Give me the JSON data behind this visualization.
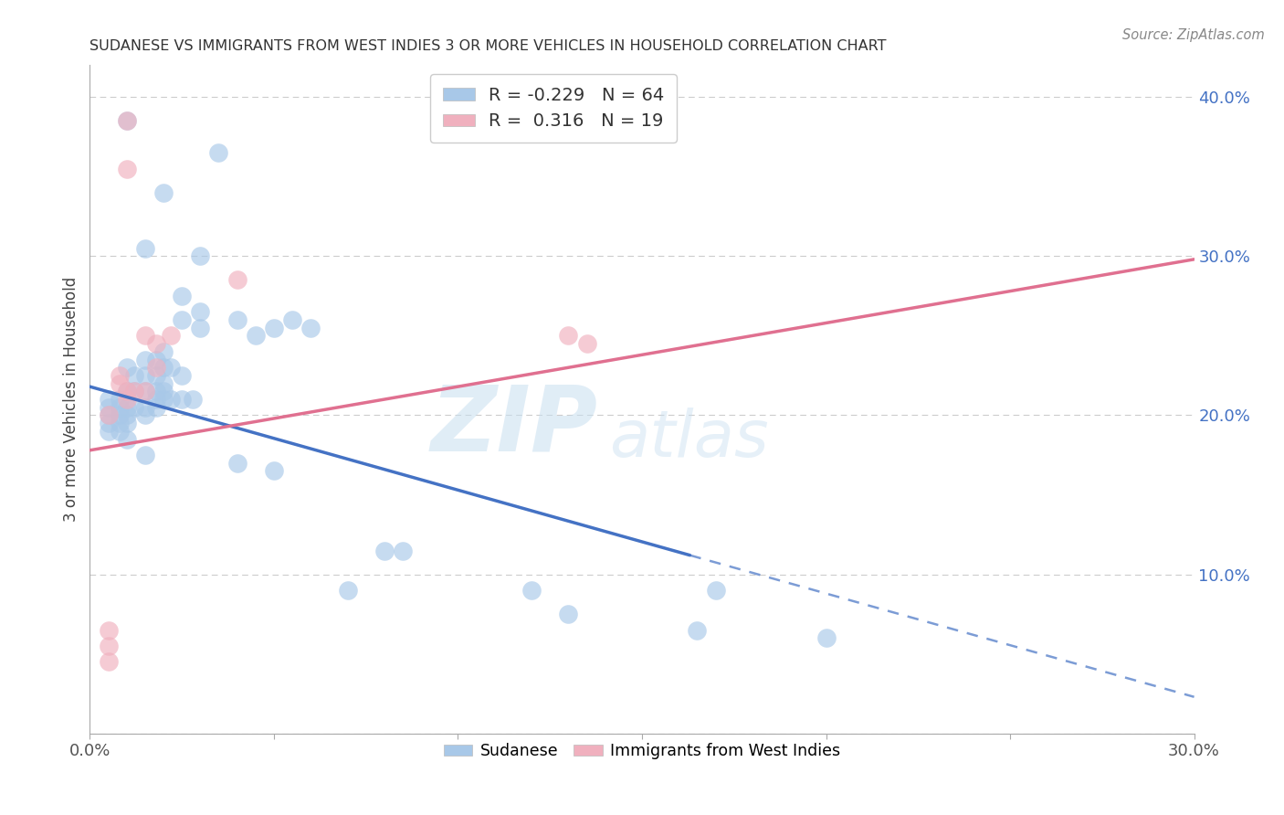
{
  "title": "SUDANESE VS IMMIGRANTS FROM WEST INDIES 3 OR MORE VEHICLES IN HOUSEHOLD CORRELATION CHART",
  "source": "Source: ZipAtlas.com",
  "ylabel": "3 or more Vehicles in Household",
  "legend_label1": "Sudanese",
  "legend_label2": "Immigrants from West Indies",
  "R1": -0.229,
  "N1": 64,
  "R2": 0.316,
  "N2": 19,
  "xlim": [
    0.0,
    0.3
  ],
  "ylim": [
    0.0,
    0.42
  ],
  "xticks": [
    0.0,
    0.05,
    0.1,
    0.15,
    0.2,
    0.25,
    0.3
  ],
  "yticks": [
    0.0,
    0.1,
    0.2,
    0.3,
    0.4
  ],
  "color_blue": "#a8c8e8",
  "color_pink": "#f0b0be",
  "line_color_blue": "#4472c4",
  "line_color_pink": "#e07090",
  "watermark_zip": "ZIP",
  "watermark_atlas": "atlas",
  "blue_points": [
    [
      0.01,
      0.385
    ],
    [
      0.02,
      0.34
    ],
    [
      0.035,
      0.365
    ],
    [
      0.03,
      0.3
    ],
    [
      0.015,
      0.305
    ],
    [
      0.025,
      0.275
    ],
    [
      0.025,
      0.26
    ],
    [
      0.03,
      0.265
    ],
    [
      0.03,
      0.255
    ],
    [
      0.04,
      0.26
    ],
    [
      0.05,
      0.255
    ],
    [
      0.055,
      0.26
    ],
    [
      0.06,
      0.255
    ],
    [
      0.045,
      0.25
    ],
    [
      0.01,
      0.23
    ],
    [
      0.012,
      0.225
    ],
    [
      0.015,
      0.235
    ],
    [
      0.015,
      0.225
    ],
    [
      0.018,
      0.235
    ],
    [
      0.018,
      0.225
    ],
    [
      0.02,
      0.24
    ],
    [
      0.02,
      0.23
    ],
    [
      0.02,
      0.22
    ],
    [
      0.022,
      0.23
    ],
    [
      0.025,
      0.225
    ],
    [
      0.01,
      0.215
    ],
    [
      0.012,
      0.215
    ],
    [
      0.015,
      0.215
    ],
    [
      0.018,
      0.215
    ],
    [
      0.018,
      0.21
    ],
    [
      0.02,
      0.215
    ],
    [
      0.02,
      0.21
    ],
    [
      0.022,
      0.21
    ],
    [
      0.025,
      0.21
    ],
    [
      0.028,
      0.21
    ],
    [
      0.005,
      0.21
    ],
    [
      0.008,
      0.21
    ],
    [
      0.005,
      0.205
    ],
    [
      0.008,
      0.205
    ],
    [
      0.01,
      0.205
    ],
    [
      0.012,
      0.205
    ],
    [
      0.015,
      0.205
    ],
    [
      0.018,
      0.205
    ],
    [
      0.005,
      0.2
    ],
    [
      0.008,
      0.2
    ],
    [
      0.01,
      0.2
    ],
    [
      0.015,
      0.2
    ],
    [
      0.005,
      0.195
    ],
    [
      0.008,
      0.195
    ],
    [
      0.01,
      0.195
    ],
    [
      0.005,
      0.19
    ],
    [
      0.008,
      0.19
    ],
    [
      0.01,
      0.185
    ],
    [
      0.015,
      0.175
    ],
    [
      0.04,
      0.17
    ],
    [
      0.05,
      0.165
    ],
    [
      0.08,
      0.115
    ],
    [
      0.085,
      0.115
    ],
    [
      0.07,
      0.09
    ],
    [
      0.17,
      0.09
    ],
    [
      0.12,
      0.09
    ],
    [
      0.13,
      0.075
    ],
    [
      0.2,
      0.06
    ],
    [
      0.165,
      0.065
    ]
  ],
  "pink_points": [
    [
      0.01,
      0.385
    ],
    [
      0.01,
      0.355
    ],
    [
      0.04,
      0.285
    ],
    [
      0.015,
      0.25
    ],
    [
      0.018,
      0.245
    ],
    [
      0.022,
      0.25
    ],
    [
      0.018,
      0.23
    ],
    [
      0.008,
      0.225
    ],
    [
      0.008,
      0.22
    ],
    [
      0.01,
      0.215
    ],
    [
      0.012,
      0.215
    ],
    [
      0.015,
      0.215
    ],
    [
      0.01,
      0.21
    ],
    [
      0.005,
      0.2
    ],
    [
      0.13,
      0.25
    ],
    [
      0.135,
      0.245
    ],
    [
      0.005,
      0.065
    ],
    [
      0.005,
      0.055
    ],
    [
      0.005,
      0.045
    ]
  ]
}
